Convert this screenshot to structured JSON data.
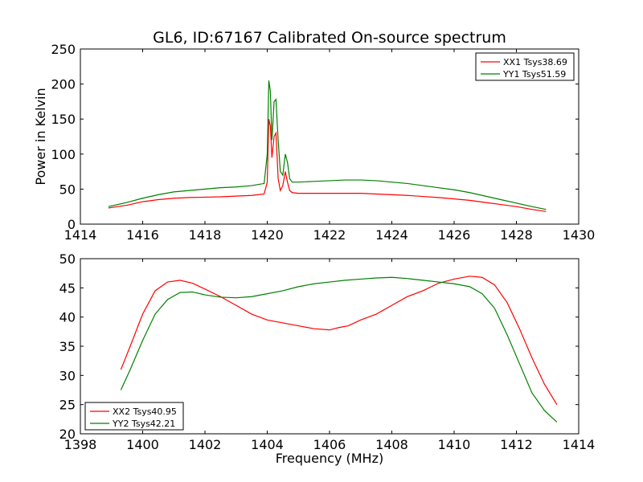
{
  "figure_title": "GL6, ID:67167 Calibrated On-source spectrum",
  "chart_data": [
    {
      "type": "line",
      "title": "GL6, ID:67167 Calibrated On-source spectrum",
      "xlabel": "",
      "ylabel": "Power in Kelvin",
      "xlim": [
        1414,
        1430
      ],
      "ylim": [
        0,
        250
      ],
      "xticks": [
        1414,
        1416,
        1418,
        1420,
        1422,
        1424,
        1426,
        1428,
        1430
      ],
      "yticks": [
        0,
        50,
        100,
        150,
        200,
        250
      ],
      "grid": false,
      "legend_position": "top-right",
      "series": [
        {
          "name": "XX1 Tsys38.69",
          "color": "#ff0000",
          "x": [
            1414.9,
            1415.5,
            1416.0,
            1416.5,
            1417.0,
            1417.5,
            1418.0,
            1418.5,
            1419.0,
            1419.5,
            1419.9,
            1420.0,
            1420.05,
            1420.1,
            1420.15,
            1420.22,
            1420.28,
            1420.35,
            1420.42,
            1420.5,
            1420.58,
            1420.65,
            1420.72,
            1420.8,
            1421.0,
            1421.5,
            1422.0,
            1422.5,
            1423.0,
            1423.5,
            1424.0,
            1424.5,
            1425.0,
            1425.5,
            1426.0,
            1426.5,
            1427.0,
            1427.5,
            1428.0,
            1428.5,
            1428.95
          ],
          "y": [
            23,
            27,
            32,
            35,
            37,
            38,
            38.5,
            39,
            40,
            41,
            43,
            60,
            150,
            140,
            95,
            125,
            130,
            65,
            48,
            55,
            75,
            60,
            48,
            45,
            44,
            44,
            44,
            44,
            44,
            43,
            42,
            41,
            39.5,
            38,
            36,
            34,
            31,
            28,
            25,
            21,
            18
          ]
        },
        {
          "name": "YY1 Tsys51.59",
          "color": "#008000",
          "x": [
            1414.9,
            1415.5,
            1416.0,
            1416.5,
            1417.0,
            1417.5,
            1418.0,
            1418.5,
            1419.0,
            1419.5,
            1419.9,
            1420.0,
            1420.05,
            1420.1,
            1420.15,
            1420.22,
            1420.28,
            1420.35,
            1420.42,
            1420.5,
            1420.58,
            1420.65,
            1420.72,
            1420.8,
            1421.0,
            1421.5,
            1422.0,
            1422.5,
            1423.0,
            1423.5,
            1424.0,
            1424.5,
            1425.0,
            1425.5,
            1426.0,
            1426.5,
            1427.0,
            1427.5,
            1428.0,
            1428.5,
            1428.95
          ],
          "y": [
            25,
            31,
            37,
            42,
            46,
            48,
            50,
            52,
            53,
            55,
            58,
            100,
            205,
            190,
            120,
            175,
            178,
            120,
            75,
            70,
            100,
            88,
            65,
            60,
            60,
            61,
            62,
            63,
            63,
            62,
            60,
            58,
            55,
            52,
            49,
            45,
            40,
            35,
            30,
            25,
            21
          ]
        }
      ]
    },
    {
      "type": "line",
      "title": "",
      "xlabel": "Frequency (MHz)",
      "ylabel": "",
      "xlim": [
        1398,
        1414
      ],
      "ylim": [
        20,
        50
      ],
      "xticks": [
        1398,
        1400,
        1402,
        1404,
        1406,
        1408,
        1410,
        1412,
        1414
      ],
      "yticks": [
        20,
        25,
        30,
        35,
        40,
        45,
        50
      ],
      "grid": false,
      "legend_position": "bottom-left",
      "series": [
        {
          "name": "XX2 Tsys40.95",
          "color": "#ff0000",
          "x": [
            1399.3,
            1399.6,
            1400.0,
            1400.4,
            1400.8,
            1401.2,
            1401.6,
            1402.0,
            1402.5,
            1403.0,
            1403.5,
            1404.0,
            1404.5,
            1405.0,
            1405.5,
            1406.0,
            1406.3,
            1406.6,
            1407.0,
            1407.5,
            1408.0,
            1408.5,
            1409.0,
            1409.5,
            1410.0,
            1410.5,
            1410.9,
            1411.3,
            1411.7,
            1412.1,
            1412.5,
            1412.9,
            1413.3
          ],
          "y": [
            31,
            35,
            40.5,
            44.5,
            46,
            46.3,
            45.8,
            44.8,
            43.5,
            42,
            40.5,
            39.5,
            39,
            38.5,
            38,
            37.8,
            38.2,
            38.5,
            39.5,
            40.5,
            42,
            43.5,
            44.5,
            45.8,
            46.5,
            47,
            46.8,
            45.5,
            42.5,
            38,
            33,
            28.5,
            25
          ]
        },
        {
          "name": "YY2 Tsys42.21",
          "color": "#008000",
          "x": [
            1399.3,
            1399.6,
            1400.0,
            1400.4,
            1400.8,
            1401.2,
            1401.6,
            1402.0,
            1402.5,
            1403.0,
            1403.5,
            1404.0,
            1404.5,
            1405.0,
            1405.5,
            1406.0,
            1406.5,
            1407.0,
            1407.5,
            1408.0,
            1408.5,
            1409.0,
            1409.5,
            1410.0,
            1410.5,
            1410.9,
            1411.3,
            1411.7,
            1412.1,
            1412.5,
            1412.9,
            1413.3
          ],
          "y": [
            27.5,
            31,
            36,
            40.5,
            43,
            44.2,
            44.3,
            43.8,
            43.4,
            43.3,
            43.5,
            44,
            44.5,
            45.2,
            45.7,
            46,
            46.3,
            46.5,
            46.7,
            46.8,
            46.6,
            46.3,
            46,
            45.7,
            45.2,
            44,
            41.5,
            37,
            32,
            27,
            24,
            22
          ]
        }
      ]
    }
  ]
}
